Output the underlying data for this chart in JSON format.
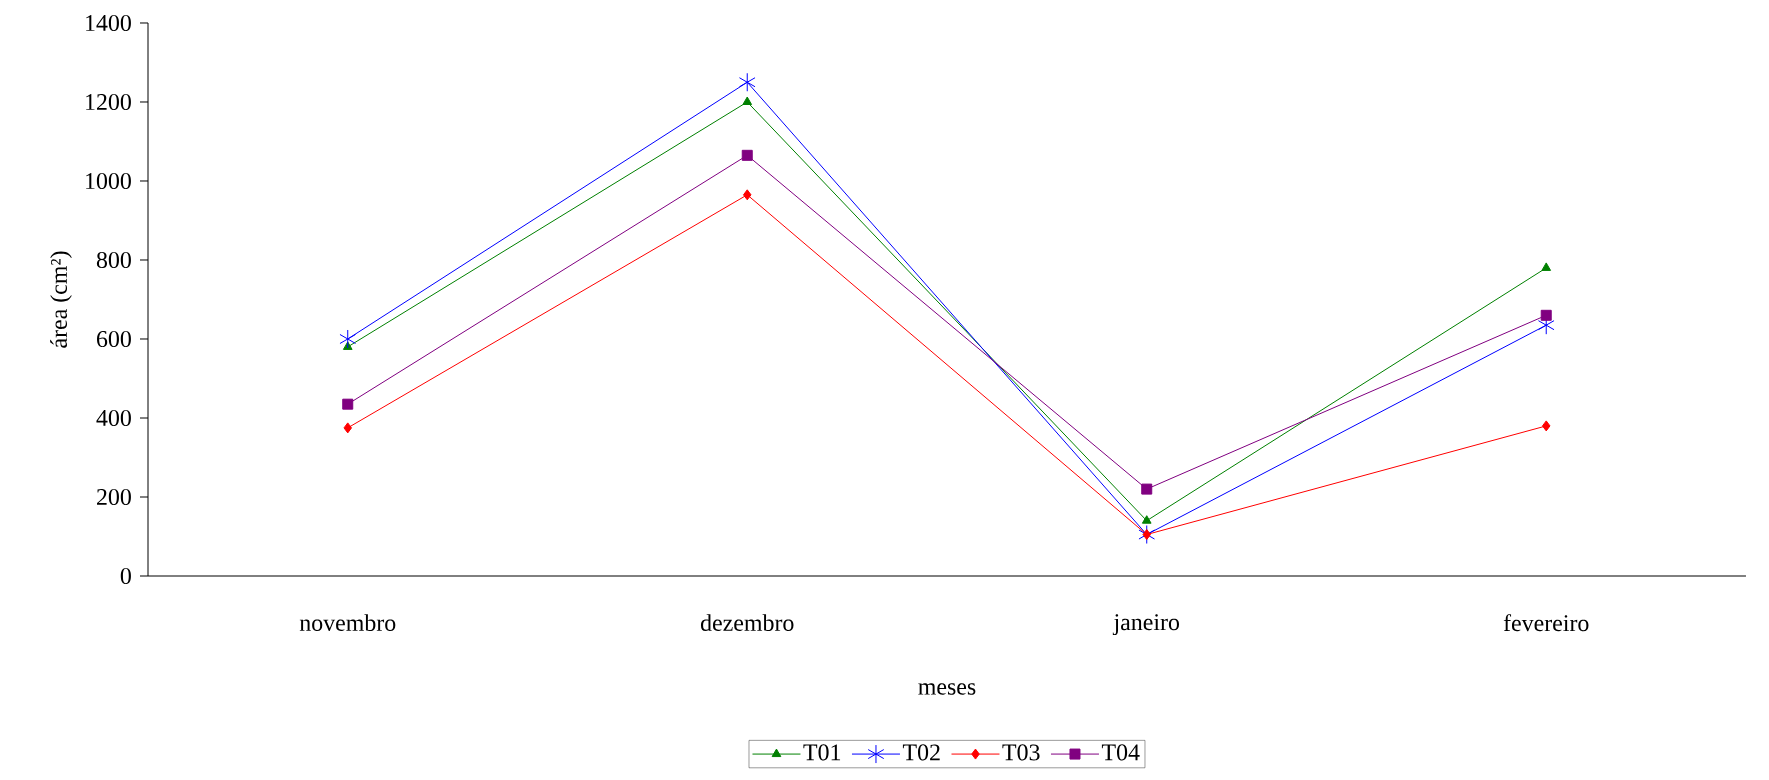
{
  "chart_data": {
    "type": "line",
    "xlabel": "meses",
    "ylabel": "área (cm²)",
    "categories": [
      "novembro",
      "dezembro",
      "janeiro",
      "fevereiro"
    ],
    "series": [
      {
        "name": "T01",
        "color": "#008000",
        "marker": "triangle",
        "values": [
          580,
          1200,
          140,
          780
        ]
      },
      {
        "name": "T02",
        "color": "#0000ff",
        "marker": "cross",
        "values": [
          600,
          1250,
          105,
          635
        ]
      },
      {
        "name": "T03",
        "color": "#ff0000",
        "marker": "diamond",
        "values": [
          375,
          965,
          105,
          380
        ]
      },
      {
        "name": "T04",
        "color": "#800080",
        "marker": "square",
        "values": [
          435,
          1065,
          220,
          660
        ]
      }
    ],
    "ylim": [
      0,
      1400
    ],
    "yticks": [
      0,
      200,
      400,
      600,
      800,
      1000,
      1200,
      1400
    ],
    "legend": "bottom"
  }
}
